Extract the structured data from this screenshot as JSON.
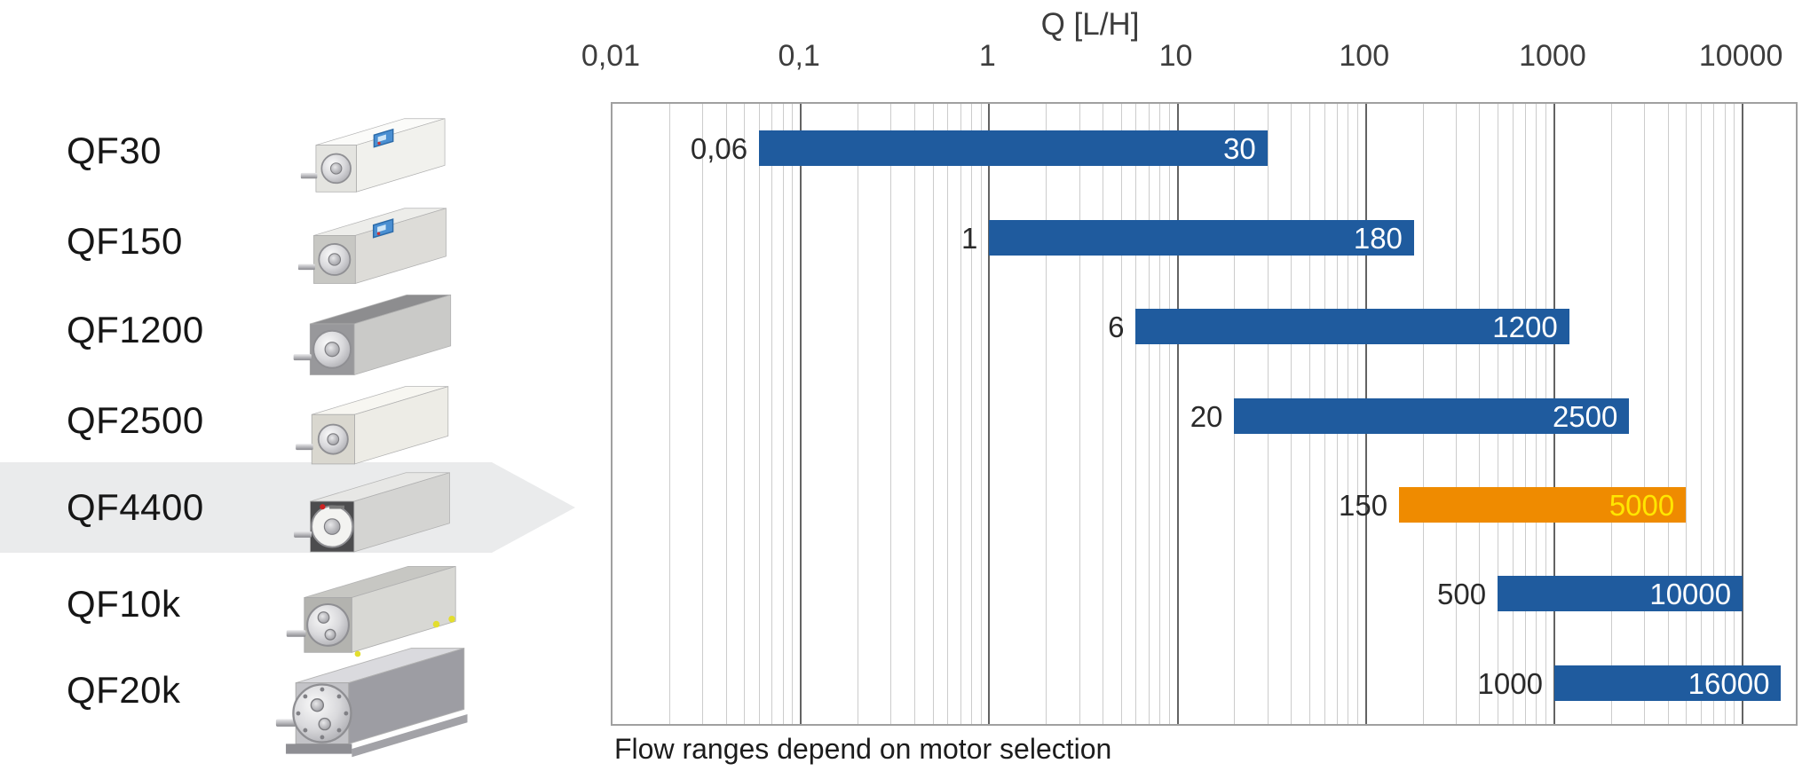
{
  "products": [
    {
      "name": "QF30"
    },
    {
      "name": "QF150"
    },
    {
      "name": "QF1200"
    },
    {
      "name": "QF2500"
    },
    {
      "name": "QF4400",
      "highlighted": true
    },
    {
      "name": "QF10k"
    },
    {
      "name": "QF20k"
    }
  ],
  "chart_data": {
    "type": "bar",
    "orientation": "horizontal",
    "x_scale": "log",
    "title": "Q [L/H]",
    "categories": [
      "QF30",
      "QF150",
      "QF1200",
      "QF2500",
      "QF4400",
      "QF10k",
      "QF20k"
    ],
    "series": [
      {
        "name": "Flow range",
        "ranges": [
          {
            "min": 0.06,
            "max": 30,
            "min_label": "0,06",
            "max_label": "30"
          },
          {
            "min": 1,
            "max": 180,
            "min_label": "1",
            "max_label": "180"
          },
          {
            "min": 6,
            "max": 1200,
            "min_label": "6",
            "max_label": "1200"
          },
          {
            "min": 20,
            "max": 2500,
            "min_label": "20",
            "max_label": "2500"
          },
          {
            "min": 150,
            "max": 5000,
            "min_label": "150",
            "max_label": "5000",
            "highlighted": true
          },
          {
            "min": 500,
            "max": 10000,
            "min_label": "500",
            "max_label": "10000"
          },
          {
            "min": 1000,
            "max": 16000,
            "min_label": "1000",
            "max_label": "16000"
          }
        ]
      }
    ],
    "xlim": [
      0.01,
      20000
    ],
    "x_ticks": [
      {
        "value": 0.01,
        "label": "0,01"
      },
      {
        "value": 0.1,
        "label": "0,1"
      },
      {
        "value": 1,
        "label": "1"
      },
      {
        "value": 10,
        "label": "10"
      },
      {
        "value": 100,
        "label": "100"
      },
      {
        "value": 1000,
        "label": "1000"
      },
      {
        "value": 10000,
        "label": "10000"
      }
    ],
    "grid": "log major and minor vertical lines",
    "legend": "none",
    "colors": {
      "bar": "#1f5b9e",
      "bar_highlight": "#ef8b00",
      "max_label": "#ffffff",
      "max_label_highlight": "#ffe600",
      "min_label": "#2a2a2a",
      "highlight_band": "#eaebec"
    },
    "caption": "Flow ranges depend on motor selection"
  }
}
